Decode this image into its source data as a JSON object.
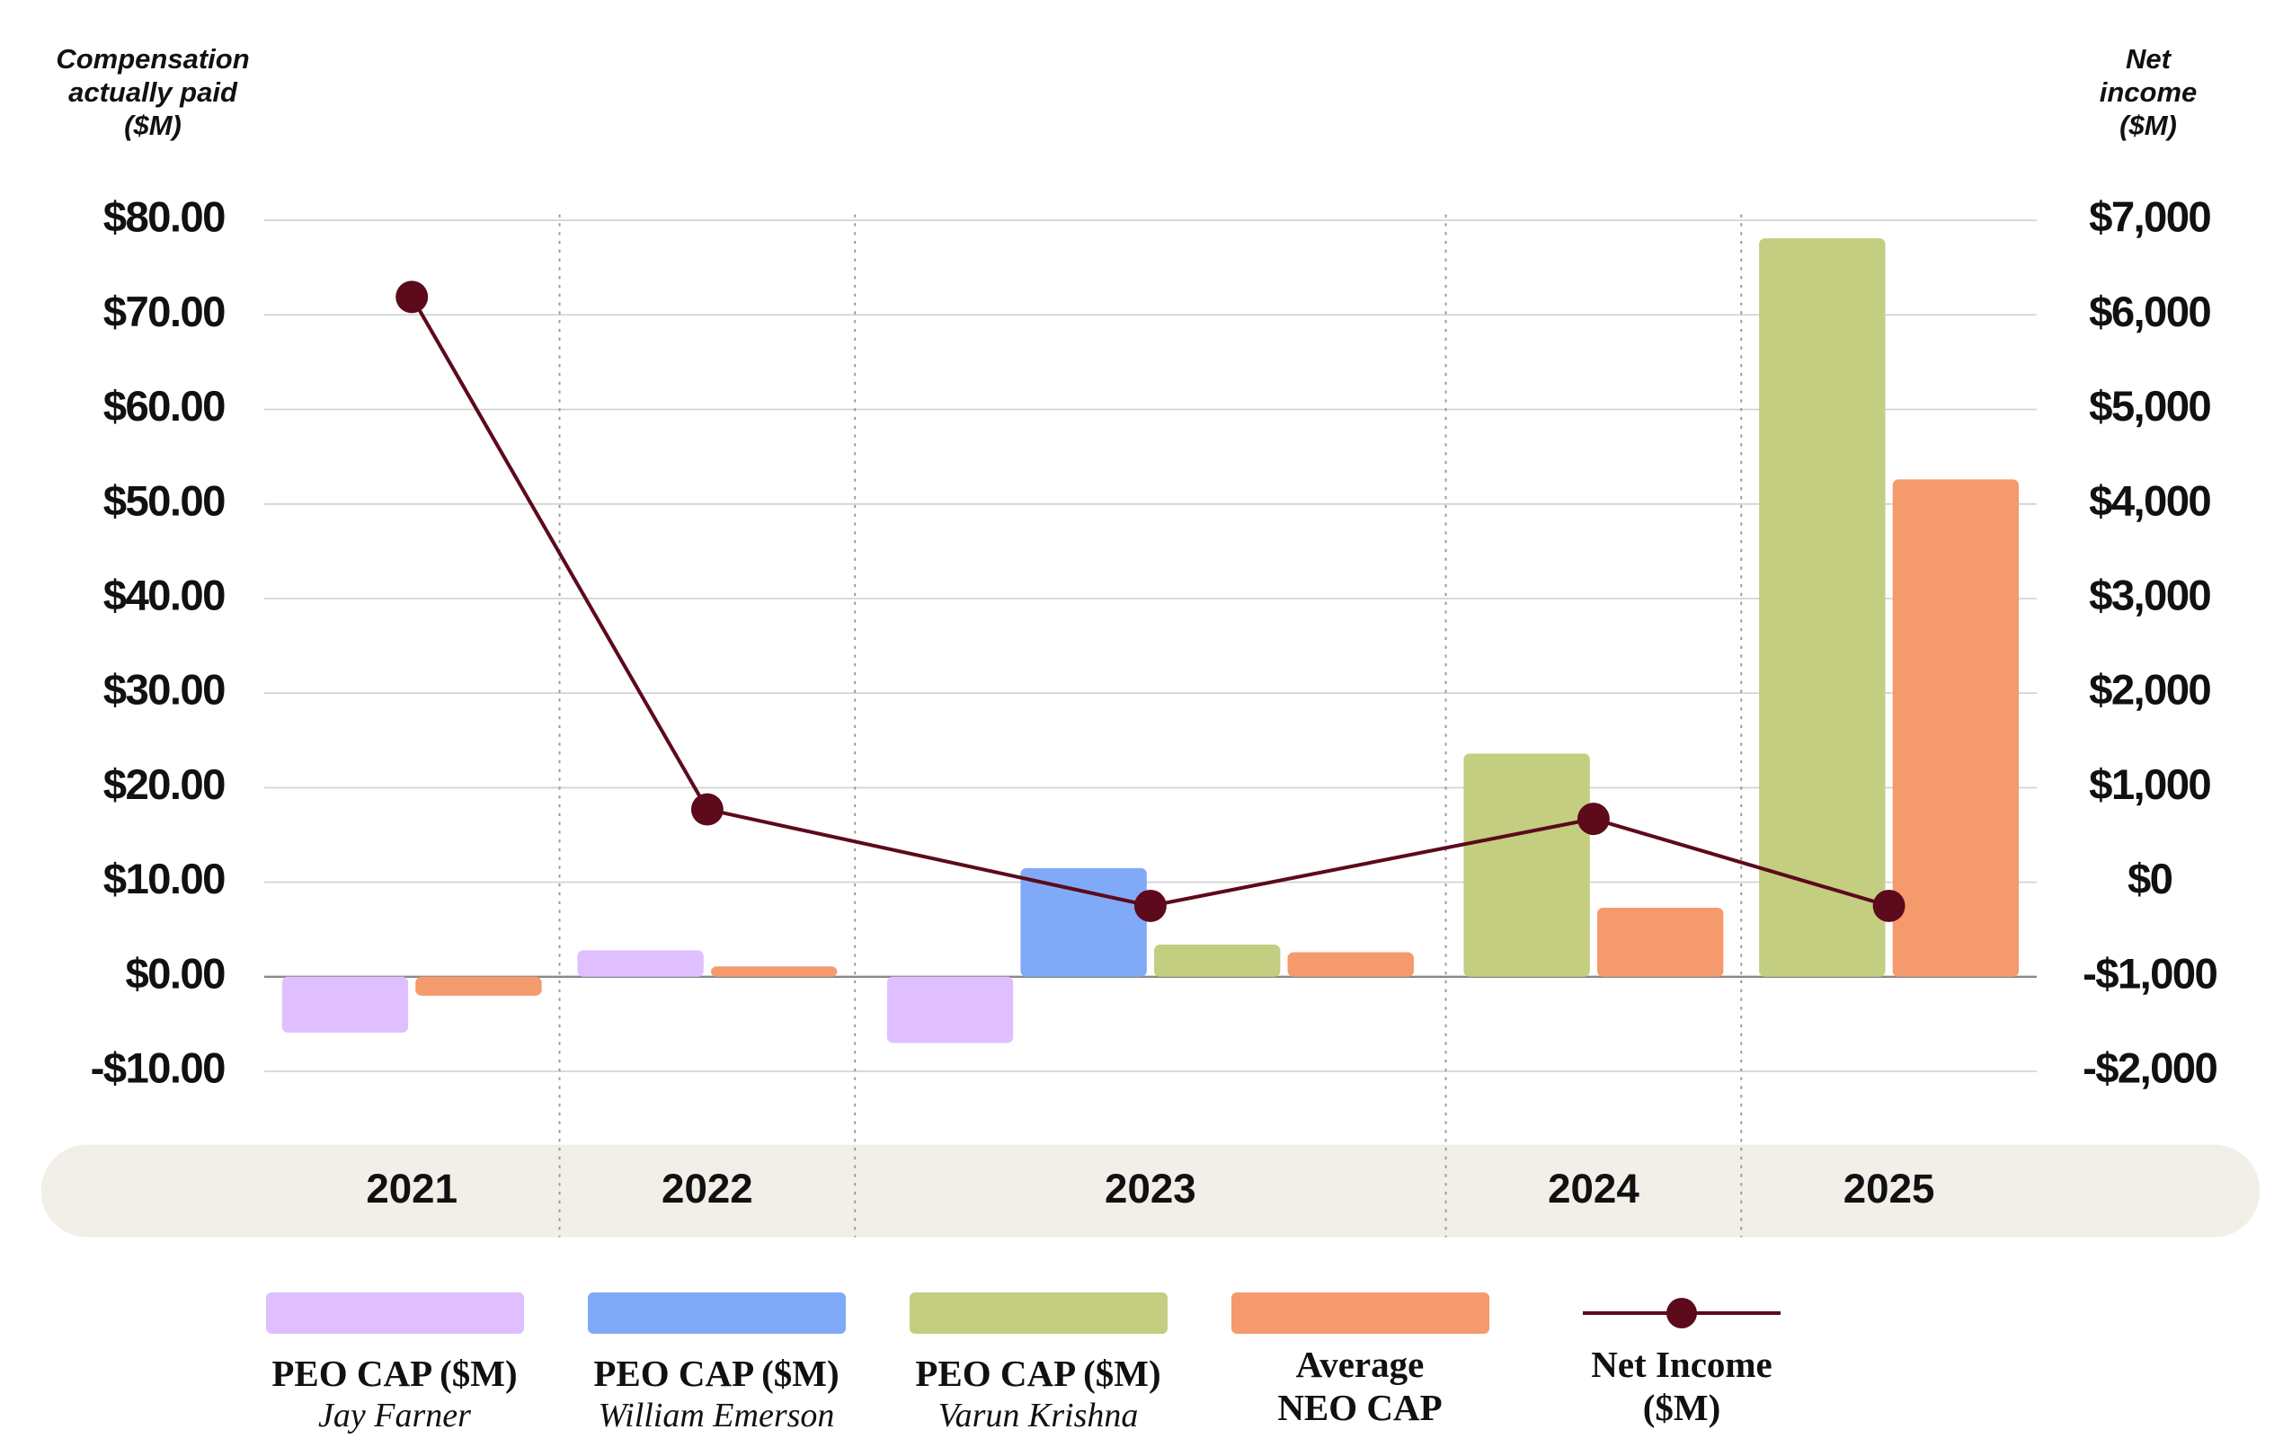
{
  "chart_data": {
    "type": "bar",
    "y_title": "Compensation actually paid ($M)",
    "y2_title": "Net income ($M)",
    "categories": [
      "2021",
      "2022",
      "2023",
      "2024",
      "2025"
    ],
    "series": [
      {
        "name": "PEO CAP ($M)",
        "subtitle": "Jay Farner",
        "color": "#dfbfff",
        "values": [
          -5.9,
          2.8,
          -7.0,
          null,
          null
        ]
      },
      {
        "name": "PEO CAP ($M)",
        "subtitle": "William Emerson",
        "color": "#80aaf8",
        "values": [
          null,
          null,
          11.5,
          null,
          null
        ]
      },
      {
        "name": "PEO CAP ($M)",
        "subtitle": "Varun Krishna",
        "color": "#c3ce80",
        "values": [
          null,
          null,
          3.4,
          23.6,
          78.1
        ]
      },
      {
        "name": "Average NEO CAP",
        "color": "#f59a6c",
        "values": [
          -2.0,
          1.1,
          2.6,
          7.3,
          52.6
        ]
      },
      {
        "name": "Net Income ($M)",
        "type": "line",
        "axis": "y2",
        "color": "#5c0a1c",
        "values": [
          6190,
          770,
          -250,
          670,
          -250
        ]
      }
    ],
    "ylim": [
      -10,
      80
    ],
    "yticks": [
      {
        "value": -10,
        "label": "-$10.00"
      },
      {
        "value": 0,
        "label": "$0.00"
      },
      {
        "value": 10,
        "label": "$10.00"
      },
      {
        "value": 20,
        "label": "$20.00"
      },
      {
        "value": 30,
        "label": "$30.00"
      },
      {
        "value": 40,
        "label": "$40.00"
      },
      {
        "value": 50,
        "label": "$50.00"
      },
      {
        "value": 60,
        "label": "$60.00"
      },
      {
        "value": 70,
        "label": "$70.00"
      },
      {
        "value": 80,
        "label": "$80.00"
      }
    ],
    "y2lim": [
      -2000,
      7000
    ],
    "y2ticks": [
      {
        "value": -2000,
        "label": "-$2,000"
      },
      {
        "value": -1000,
        "label": "-$1,000"
      },
      {
        "value": 0,
        "label": "$0"
      },
      {
        "value": 1000,
        "label": "$1,000"
      },
      {
        "value": 2000,
        "label": "$2,000"
      },
      {
        "value": 3000,
        "label": "$3,000"
      },
      {
        "value": 4000,
        "label": "$4,000"
      },
      {
        "value": 5000,
        "label": "$5,000"
      },
      {
        "value": 6000,
        "label": "$6,000"
      },
      {
        "value": 7000,
        "label": "$7,000"
      }
    ],
    "grid": true
  }
}
